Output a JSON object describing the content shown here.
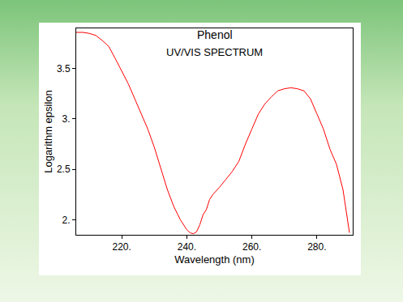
{
  "chart_data": {
    "type": "line",
    "title": "Phenol",
    "subtitle": "UV/VIS SPECTRUM",
    "x_label": "Wavelength (nm)",
    "y_label": "Logarithm epsilon",
    "x": [
      206,
      208,
      210,
      212,
      214,
      216,
      218,
      220,
      222,
      224,
      226,
      228,
      230,
      232,
      234,
      236,
      238,
      240,
      241,
      242,
      243,
      244,
      245,
      246,
      247,
      248,
      250,
      252,
      254,
      256,
      258,
      260,
      262,
      264,
      266,
      268,
      270,
      272,
      274,
      276,
      278,
      280,
      282,
      284,
      286,
      288,
      290
    ],
    "values": [
      3.86,
      3.86,
      3.85,
      3.83,
      3.78,
      3.72,
      3.6,
      3.48,
      3.35,
      3.2,
      3.05,
      2.9,
      2.72,
      2.5,
      2.3,
      2.13,
      2.0,
      1.9,
      1.87,
      1.86,
      1.88,
      1.95,
      2.05,
      2.1,
      2.2,
      2.25,
      2.32,
      2.4,
      2.48,
      2.58,
      2.75,
      2.9,
      3.05,
      3.15,
      3.22,
      3.28,
      3.3,
      3.31,
      3.3,
      3.28,
      3.2,
      3.05,
      2.9,
      2.7,
      2.55,
      2.3,
      1.87
    ],
    "color": "#ff0000",
    "xlim": [
      206,
      291
    ],
    "xticks": [
      {
        "value": 220,
        "label": "220."
      },
      {
        "value": 240,
        "label": "240."
      },
      {
        "value": 260,
        "label": "260."
      },
      {
        "value": 280,
        "label": "280."
      }
    ],
    "ylim": [
      1.85,
      3.9
    ],
    "yticks": [
      {
        "value": 2,
        "label": "2."
      },
      2.5,
      {
        "value": 3,
        "label": "3."
      },
      3.5
    ],
    "grid": false
  }
}
